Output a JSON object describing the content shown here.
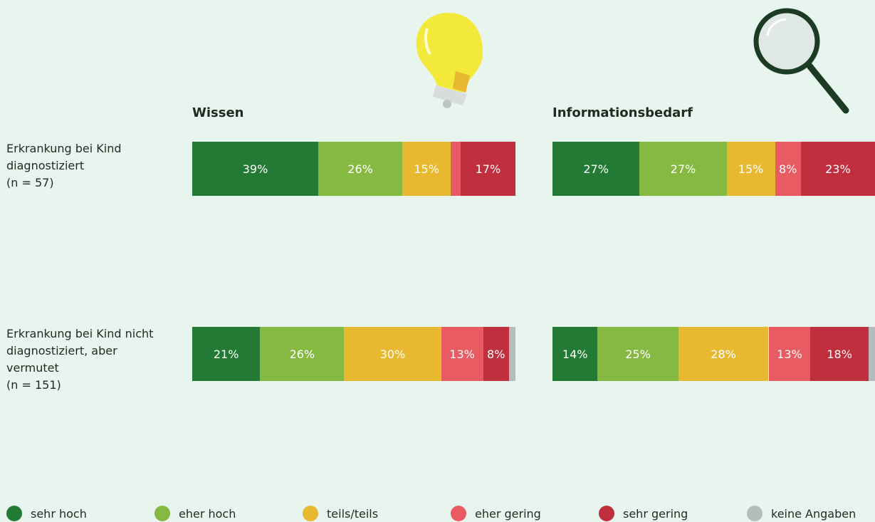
{
  "chart_data": {
    "type": "bar",
    "orientation": "horizontal",
    "stacked": true,
    "categories": [
      "Erkrankung bei Kind diagnostiziert",
      "Erkrankung bei Kind nicht diagnostiziert, aber vermutet"
    ],
    "category_notes": [
      "(n = 57)",
      "(n = 151)"
    ],
    "xlim": [
      0,
      100
    ],
    "series": [
      {
        "name": "sehr hoch",
        "color": "#237a35"
      },
      {
        "name": "eher hoch",
        "color": "#86b942"
      },
      {
        "name": "teils/teils",
        "color": "#e8b830"
      },
      {
        "name": "eher gering",
        "color": "#e85b62"
      },
      {
        "name": "sehr gering",
        "color": "#c02f3d"
      },
      {
        "name": "keine Angaben",
        "color": "#b5bcbc"
      }
    ],
    "panels": [
      {
        "title": "Wissen",
        "values": [
          [
            39,
            26,
            15,
            3,
            17,
            0
          ],
          [
            21,
            26,
            30,
            13,
            8,
            2
          ]
        ],
        "value_labels": [
          [
            "39%",
            "26%",
            "15%",
            null,
            "17%",
            null
          ],
          [
            "21%",
            "26%",
            "30%",
            "13%",
            "8%",
            null
          ]
        ]
      },
      {
        "title": "Informationsbedarf",
        "values": [
          [
            27,
            27,
            15,
            8,
            23,
            0
          ],
          [
            14,
            25,
            28,
            13,
            18,
            2
          ]
        ],
        "value_labels": [
          [
            "27%",
            "27%",
            "15%",
            "8%",
            "23%",
            null
          ],
          [
            "14%",
            "25%",
            "28%",
            "13%",
            "18%",
            null
          ]
        ]
      }
    ]
  }
}
